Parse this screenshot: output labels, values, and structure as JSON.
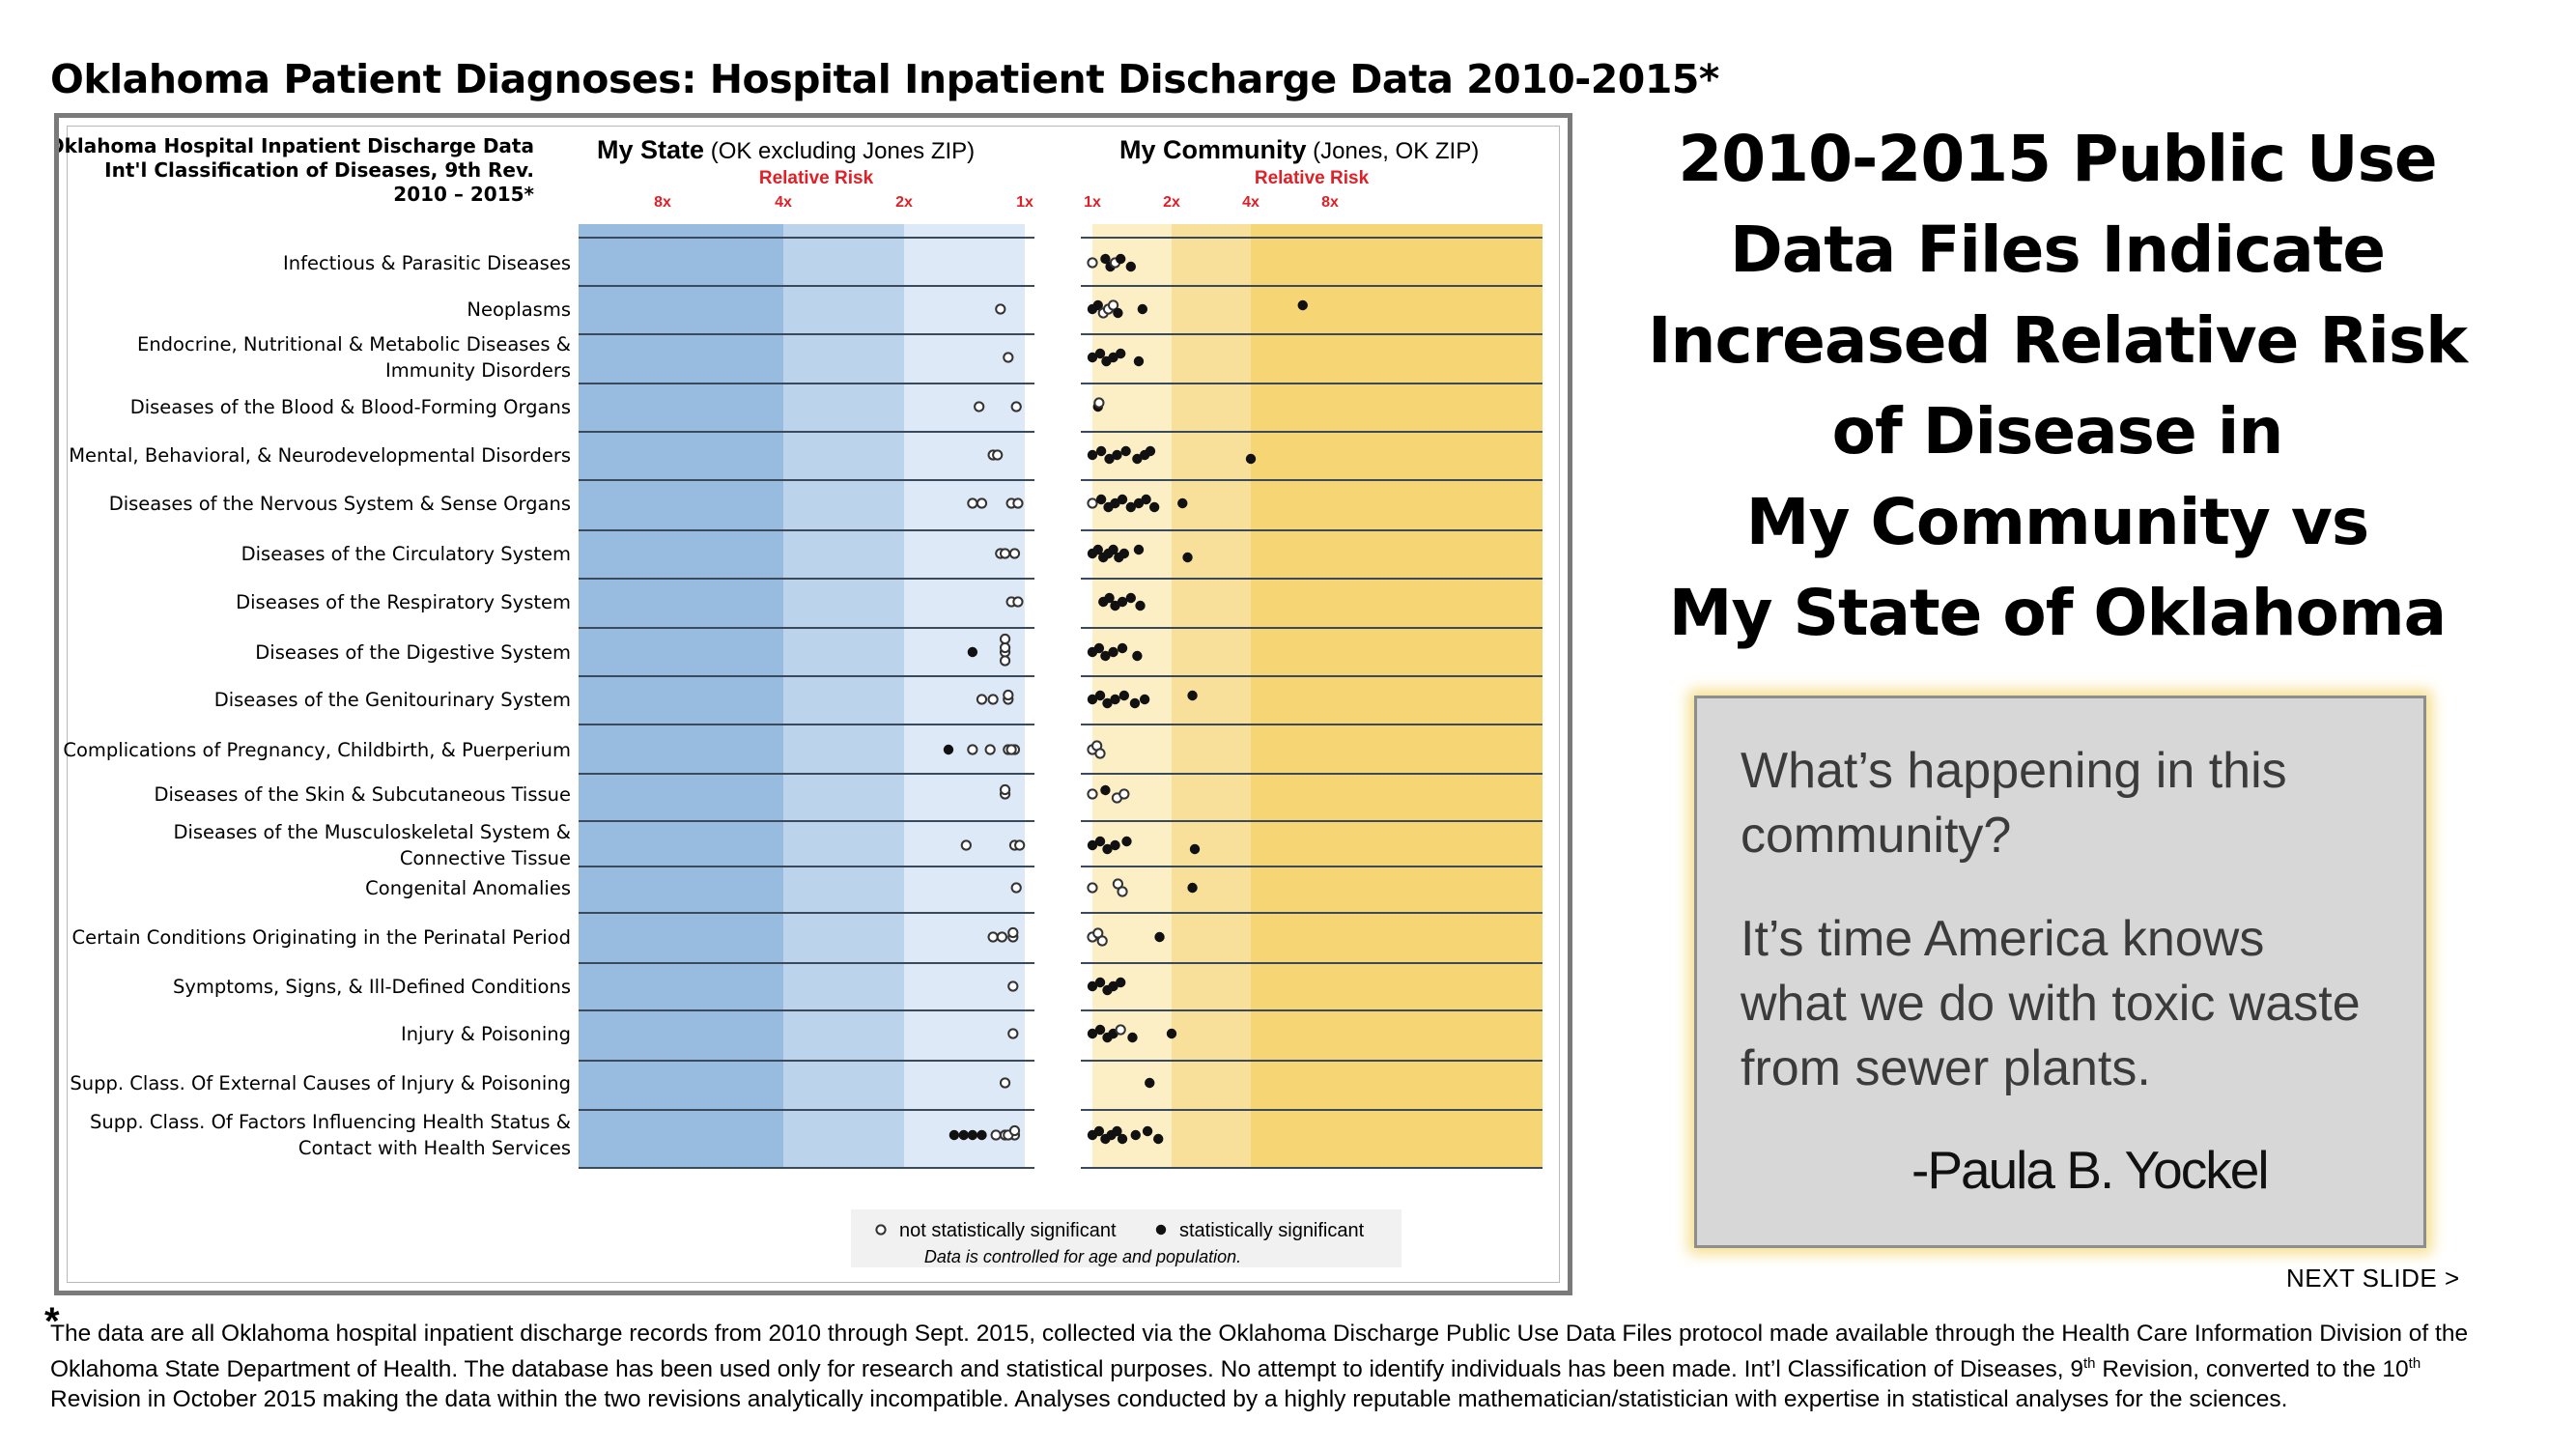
{
  "page_title": "Oklahoma Patient Diagnoses: Hospital Inpatient Discharge Data 2010-2015*",
  "headline": [
    "2010-2015 Public Use",
    "Data Files Indicate",
    "Increased Relative Risk",
    "of Disease in",
    "My Community vs",
    "My State of Oklahoma"
  ],
  "quote": {
    "paragraph1": [
      "What’s happening in this",
      "community?"
    ],
    "paragraph2": [
      "It’s time America knows",
      "what we do with toxic waste",
      "from sewer plants."
    ],
    "author": "-Paula B. Yockel"
  },
  "next_slide": "NEXT SLIDE >",
  "footnote": {
    "star": "*",
    "line1": "The data are all Oklahoma hospital inpatient discharge records from 2010 through Sept. 2015, collected via the Oklahoma Discharge Public Use Data Files protocol made available through the Health Care Information Division of the",
    "line2_a": "Oklahoma State Department of Health.  The database has been used only for research and statistical purposes.  No attempt to identify individuals has been made.  Int’l Classification of Diseases, 9",
    "line2_sup1": "th",
    "line2_b": " Revision, converted to the 10",
    "line2_sup2": "th",
    "line3": "Revision in October 2015 making the data within the two revisions analytically incompatible. Analyses conducted by a highly reputable mathematician/statistician with expertise in statistical analyses for the sciences."
  },
  "colors": {
    "state_band_dark": "#97bce0",
    "state_band_mid": "#bcd3ec",
    "state_band_light": "#dde9f6",
    "community_band_light": "#fcefc6",
    "community_band_mid": "#f8e09a",
    "community_band_dark": "#f5d574",
    "risk_label": "#e01f26",
    "row_rule": "#3a4a5a"
  },
  "chart_data": {
    "type": "scatter",
    "title_lines": [
      "Oklahoma Hospital Inpatient Discharge Data",
      "Int'l Classification of Diseases, 9th Rev.",
      "2010 – 2015*"
    ],
    "panel_state": {
      "title": "My State",
      "subtitle": "(OK excluding Jones ZIP)",
      "axis_label": "Relative Risk",
      "ticks": [
        "8x",
        "4x",
        "2x",
        "1x"
      ]
    },
    "panel_community": {
      "title": "My Community",
      "subtitle": "(Jones, OK ZIP)",
      "axis_label": "Relative Risk",
      "ticks": [
        "1x",
        "2x",
        "4x",
        "8x"
      ]
    },
    "legend": {
      "open": "not statistically significant",
      "filled": "statistically significant",
      "note": "Data is controlled for age and population."
    },
    "categories": [
      [
        "Infectious & Parasitic Diseases"
      ],
      [
        "Neoplasms"
      ],
      [
        "Endocrine, Nutritional & Metabolic Diseases &",
        "Immunity Disorders"
      ],
      [
        "Diseases of the Blood & Blood-Forming Organs"
      ],
      [
        "Mental, Behavioral, & Neurodevelopmental Disorders"
      ],
      [
        "Diseases of the Nervous System & Sense Organs"
      ],
      [
        "Diseases of the Circulatory System"
      ],
      [
        "Diseases of the Respiratory System"
      ],
      [
        "Diseases of the Digestive System"
      ],
      [
        "Diseases of the Genitourinary System"
      ],
      [
        "Complications of Pregnancy, Childbirth, & Puerperium"
      ],
      [
        "Diseases of the Skin & Subcutaneous Tissue"
      ],
      [
        "Diseases of the Musculoskeletal System &",
        "Connective Tissue"
      ],
      [
        "Congenital Anomalies"
      ],
      [
        "Certain Conditions Originating in the Perinatal Period"
      ],
      [
        "Symptoms, Signs, & Ill-Defined Conditions"
      ],
      [
        "Injury & Poisoning"
      ],
      [
        "Supp. Class. Of External Causes of Injury & Poisoning"
      ],
      [
        "Supp. Class. Of Factors Influencing Health Status &",
        "Contact with Health Services"
      ]
    ],
    "state_points": [
      [],
      [
        [
          1.15,
          0
        ]
      ],
      [
        [
          1.1,
          0
        ]
      ],
      [
        [
          1.3,
          0
        ],
        [
          1.05,
          0
        ]
      ],
      [
        [
          1.2,
          0
        ],
        [
          1.17,
          0
        ]
      ],
      [
        [
          1.35,
          0
        ],
        [
          1.28,
          0
        ],
        [
          1.08,
          0
        ],
        [
          1.04,
          0
        ]
      ],
      [
        [
          1.15,
          0
        ],
        [
          1.06,
          0
        ],
        [
          1.12,
          0
        ]
      ],
      [
        [
          1.08,
          0
        ],
        [
          1.04,
          0
        ]
      ],
      [
        [
          1.35,
          1
        ],
        [
          1.12,
          0
        ],
        [
          1.12,
          0
        ],
        [
          1.12,
          0
        ],
        [
          1.12,
          0
        ]
      ],
      [
        [
          1.28,
          0
        ],
        [
          1.2,
          0
        ],
        [
          1.1,
          0
        ],
        [
          1.1,
          0
        ]
      ],
      [
        [
          1.55,
          1
        ],
        [
          1.35,
          0
        ],
        [
          1.22,
          0
        ],
        [
          1.1,
          0
        ],
        [
          1.06,
          0
        ],
        [
          1.08,
          0
        ]
      ],
      [
        [
          1.12,
          0
        ],
        [
          1.12,
          0
        ]
      ],
      [
        [
          1.4,
          0
        ],
        [
          1.06,
          0
        ],
        [
          1.03,
          0
        ]
      ],
      [
        [
          1.05,
          0
        ]
      ],
      [
        [
          1.2,
          0
        ],
        [
          1.14,
          0
        ],
        [
          1.07,
          0
        ],
        [
          1.07,
          0
        ]
      ],
      [
        [
          1.07,
          0
        ]
      ],
      [
        [
          1.07,
          0
        ]
      ],
      [
        [
          1.12,
          0
        ]
      ],
      [
        [
          1.5,
          1
        ],
        [
          1.42,
          1
        ],
        [
          1.35,
          1
        ],
        [
          1.28,
          1
        ],
        [
          1.18,
          0
        ],
        [
          1.12,
          0
        ],
        [
          1.06,
          0
        ],
        [
          1.1,
          0
        ],
        [
          1.06,
          0
        ]
      ]
    ],
    "community_points": [
      [
        [
          1.0,
          0
        ],
        [
          1.12,
          1
        ],
        [
          1.17,
          1
        ],
        [
          1.22,
          0
        ],
        [
          1.28,
          1
        ],
        [
          1.4,
          1
        ]
      ],
      [
        [
          1.0,
          1
        ],
        [
          1.05,
          1
        ],
        [
          1.1,
          0
        ],
        [
          1.15,
          0
        ],
        [
          1.2,
          0
        ],
        [
          1.25,
          1
        ],
        [
          1.55,
          1
        ],
        [
          6.3,
          1
        ]
      ],
      [
        [
          1.0,
          1
        ],
        [
          1.07,
          1
        ],
        [
          1.13,
          1
        ],
        [
          1.2,
          1
        ],
        [
          1.28,
          1
        ],
        [
          1.5,
          1
        ]
      ],
      [
        [
          1.05,
          1
        ],
        [
          1.06,
          0
        ]
      ],
      [
        [
          1.0,
          1
        ],
        [
          1.08,
          1
        ],
        [
          1.16,
          1
        ],
        [
          1.24,
          1
        ],
        [
          1.34,
          1
        ],
        [
          1.48,
          1
        ],
        [
          1.58,
          1
        ],
        [
          1.66,
          1
        ],
        [
          4.0,
          1
        ]
      ],
      [
        [
          1.0,
          0
        ],
        [
          1.08,
          1
        ],
        [
          1.15,
          1
        ],
        [
          1.22,
          1
        ],
        [
          1.3,
          1
        ],
        [
          1.4,
          1
        ],
        [
          1.5,
          1
        ],
        [
          1.6,
          1
        ],
        [
          1.72,
          1
        ],
        [
          2.2,
          1
        ]
      ],
      [
        [
          1.0,
          1
        ],
        [
          1.05,
          1
        ],
        [
          1.1,
          1
        ],
        [
          1.15,
          1
        ],
        [
          1.2,
          1
        ],
        [
          1.26,
          1
        ],
        [
          1.32,
          1
        ],
        [
          1.5,
          1
        ],
        [
          2.3,
          1
        ]
      ],
      [
        [
          1.1,
          1
        ],
        [
          1.16,
          1
        ],
        [
          1.22,
          1
        ],
        [
          1.3,
          1
        ],
        [
          1.4,
          1
        ],
        [
          1.52,
          1
        ]
      ],
      [
        [
          1.0,
          1
        ],
        [
          1.06,
          1
        ],
        [
          1.12,
          1
        ],
        [
          1.2,
          1
        ],
        [
          1.3,
          1
        ],
        [
          1.48,
          1
        ]
      ],
      [
        [
          1.0,
          1
        ],
        [
          1.07,
          1
        ],
        [
          1.14,
          1
        ],
        [
          1.22,
          1
        ],
        [
          1.32,
          1
        ],
        [
          1.45,
          1
        ],
        [
          1.58,
          1
        ],
        [
          2.4,
          1
        ]
      ],
      [
        [
          1.0,
          0
        ],
        [
          1.04,
          0
        ],
        [
          1.07,
          0
        ]
      ],
      [
        [
          1.0,
          0
        ],
        [
          1.12,
          1
        ],
        [
          1.24,
          0
        ],
        [
          1.32,
          0
        ]
      ],
      [
        [
          1.0,
          1
        ],
        [
          1.07,
          1
        ],
        [
          1.14,
          1
        ],
        [
          1.22,
          1
        ],
        [
          1.35,
          1
        ],
        [
          2.45,
          1
        ]
      ],
      [
        [
          1.0,
          0
        ],
        [
          1.25,
          0
        ],
        [
          1.3,
          0
        ],
        [
          2.4,
          1
        ]
      ],
      [
        [
          1.0,
          0
        ],
        [
          1.05,
          0
        ],
        [
          1.09,
          0
        ],
        [
          1.8,
          1
        ]
      ],
      [
        [
          1.0,
          1
        ],
        [
          1.07,
          1
        ],
        [
          1.14,
          1
        ],
        [
          1.2,
          1
        ],
        [
          1.28,
          1
        ]
      ],
      [
        [
          1.0,
          1
        ],
        [
          1.07,
          1
        ],
        [
          1.14,
          1
        ],
        [
          1.2,
          1
        ],
        [
          1.28,
          0
        ],
        [
          1.42,
          1
        ],
        [
          2.0,
          1
        ]
      ],
      [
        [
          1.65,
          1
        ]
      ],
      [
        [
          1.0,
          1
        ],
        [
          1.06,
          1
        ],
        [
          1.12,
          1
        ],
        [
          1.18,
          1
        ],
        [
          1.24,
          1
        ],
        [
          1.3,
          1
        ],
        [
          1.46,
          1
        ],
        [
          1.62,
          1
        ],
        [
          1.78,
          1
        ]
      ]
    ]
  }
}
